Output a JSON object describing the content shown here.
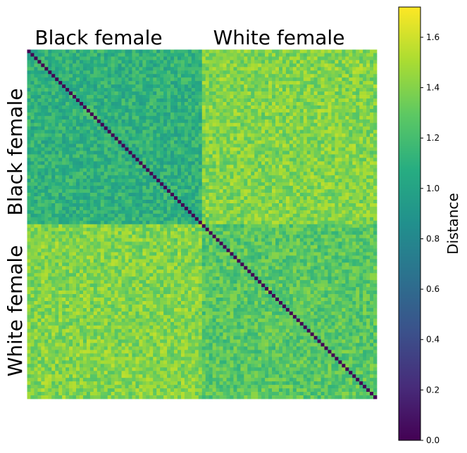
{
  "chart_data": {
    "type": "heatmap",
    "title": "",
    "xlabel": "",
    "ylabel": "",
    "n": 100,
    "groups": [
      {
        "name": "Black female",
        "start": 0,
        "end": 50
      },
      {
        "name": "White female",
        "start": 50,
        "end": 100
      }
    ],
    "block_means": {
      "within_black_female": 1.1,
      "within_white_female": 1.27,
      "between_groups": 1.4,
      "diagonal": 0.0
    },
    "colorbar": {
      "label": "Distance",
      "colormap": "viridis",
      "vmin": 0.0,
      "vmax": 1.72,
      "ticks": [
        "0.0",
        "0.2",
        "0.4",
        "0.6",
        "0.8",
        "1.0",
        "1.2",
        "1.4",
        "1.6"
      ]
    }
  }
}
